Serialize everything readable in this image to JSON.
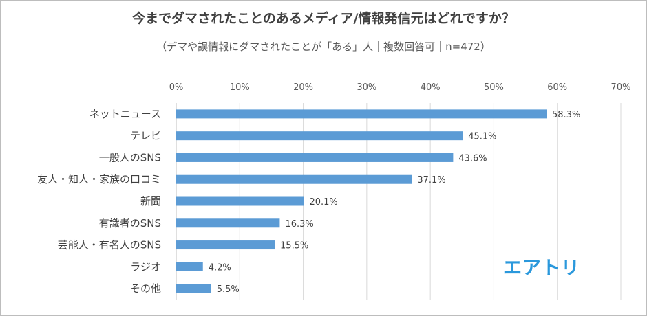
{
  "chart_data": {
    "type": "bar",
    "orientation": "horizontal",
    "title": "今までダマされたことのあるメディア/情報発信元はどれですか？",
    "subtitle": "（デマや誤情報にダマされたことが「ある」人｜複数回答可｜n=472）",
    "categories": [
      "ネットニュース",
      "テレビ",
      "一般人のSNS",
      "友人・知人・家族の口コミ",
      "新聞",
      "有識者のSNS",
      "芸能人・有名人のSNS",
      "ラジオ",
      "その他"
    ],
    "values": [
      58.3,
      45.1,
      43.6,
      37.1,
      20.1,
      16.3,
      15.5,
      4.2,
      5.5
    ],
    "data_labels": [
      "58.3%",
      "45.1%",
      "43.6%",
      "37.1%",
      "20.1%",
      "16.3%",
      "15.5%",
      "4.2%",
      "5.5%"
    ],
    "xlim": [
      0,
      70
    ],
    "x_ticks": [
      0,
      10,
      20,
      30,
      40,
      50,
      60,
      70
    ],
    "x_tick_labels": [
      "0%",
      "10%",
      "20%",
      "30%",
      "40%",
      "50%",
      "60%",
      "70%"
    ],
    "x_axis_position": "top",
    "grid": true,
    "legend": false,
    "bar_color": "#5b9bd5"
  },
  "brand": {
    "logo_text": "エアトリ",
    "color": "#2a98dc"
  }
}
